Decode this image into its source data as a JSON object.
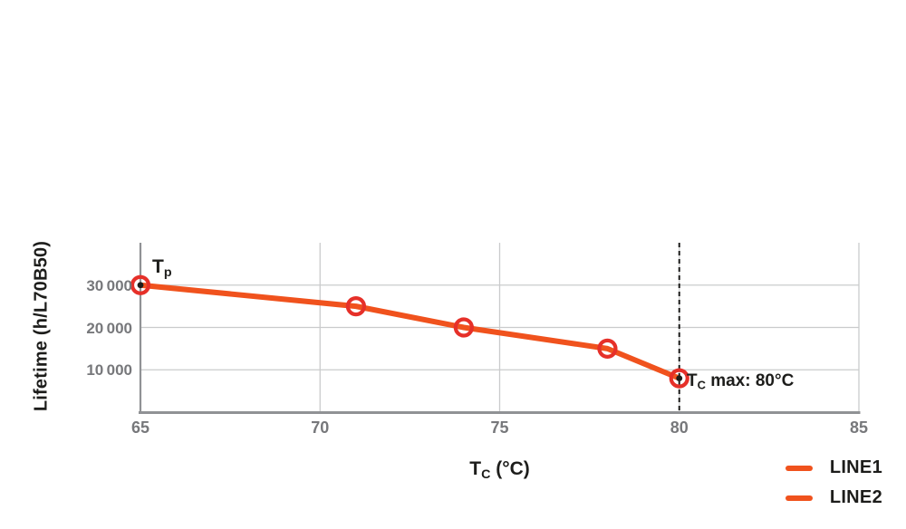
{
  "chart_data": {
    "type": "line",
    "xlabel": "Tc (°C)",
    "xlabel_parts": {
      "main": "T",
      "sub": "C",
      "rest": " (°C)"
    },
    "ylabel": "Lifetime (h/L70B50)",
    "xlim": [
      65,
      85
    ],
    "ylim": [
      0,
      40000
    ],
    "xticks": [
      65,
      70,
      75,
      80,
      85
    ],
    "xtick_labels": [
      "65",
      "70",
      "75",
      "80",
      "85"
    ],
    "yticks": [
      10000,
      20000,
      30000
    ],
    "ytick_labels": [
      "10 000",
      "20 000",
      "30 000"
    ],
    "grid": true,
    "series": [
      {
        "name": "LINE1",
        "x": [
          65,
          71,
          74,
          78,
          80
        ],
        "y": [
          30000,
          25000,
          20000,
          15000,
          8000
        ],
        "color": "#F0521D",
        "marker": "open-circle",
        "marker_color": "#E63029",
        "endpoint_dot_color": "#1d1d1b"
      }
    ],
    "vline": {
      "x": 80,
      "style": "dashed",
      "color": "#1d1d1b"
    },
    "annotations": {
      "tp": {
        "main": "T",
        "sub": "p",
        "rest": "",
        "at_x": 65,
        "at_y": 30000
      },
      "tc_max": {
        "main": "T",
        "sub": "C",
        "rest": " max: 80°C",
        "at_x": 80,
        "at_y": 8000
      }
    },
    "legend": {
      "position": "bottom-right",
      "entries": [
        {
          "label": "LINE1",
          "color": "#F0521D"
        },
        {
          "label": "LINE2",
          "color": "#F0521D"
        }
      ]
    },
    "colors": {
      "line": "#F0521D",
      "marker_ring": "#E63029",
      "grid": "#cacbcc",
      "axis": "#909295",
      "tick_text": "#77787b",
      "label_text": "#1d1d1b"
    }
  }
}
